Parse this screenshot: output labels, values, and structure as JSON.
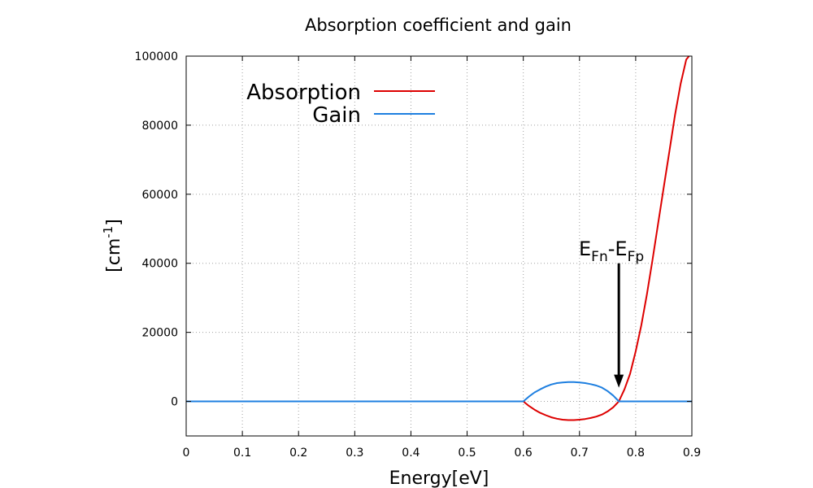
{
  "chart_data": {
    "type": "line",
    "title": "Absorption coefficient and gain",
    "xlabel": "Energy[eV]",
    "ylabel": "[cm",
    "ylabel_sup": "-1",
    "ylabel_close": "]",
    "xlim": [
      0,
      0.9
    ],
    "ylim": [
      -10000,
      100000
    ],
    "xticks": [
      0,
      0.1,
      0.2,
      0.3,
      0.4,
      0.5,
      0.6,
      0.7,
      0.8,
      0.9
    ],
    "xtick_labels": [
      "0",
      "0.1",
      "0.2",
      "0.3",
      "0.4",
      "0.5",
      "0.6",
      "0.7",
      "0.8",
      "0.9"
    ],
    "yticks": [
      0,
      20000,
      40000,
      60000,
      80000,
      100000
    ],
    "ytick_labels": [
      "0",
      "20000",
      "40000",
      "60000",
      "80000",
      "100000"
    ],
    "grid": true,
    "legend_position": "top-left",
    "series": [
      {
        "name": "Absorption",
        "color": "#dd0000",
        "x": [
          0,
          0.6,
          0.61,
          0.62,
          0.63,
          0.64,
          0.65,
          0.66,
          0.67,
          0.68,
          0.69,
          0.7,
          0.71,
          0.72,
          0.73,
          0.74,
          0.75,
          0.76,
          0.77,
          0.78,
          0.79,
          0.8,
          0.81,
          0.82,
          0.83,
          0.84,
          0.85,
          0.86,
          0.87,
          0.88,
          0.89,
          0.895
        ],
        "y": [
          0,
          0,
          -1300,
          -2400,
          -3300,
          -4000,
          -4600,
          -5000,
          -5300,
          -5400,
          -5400,
          -5300,
          -5100,
          -4800,
          -4400,
          -3800,
          -2900,
          -1700,
          0,
          3500,
          8000,
          14500,
          22000,
          31000,
          41000,
          51500,
          62000,
          72500,
          83000,
          92000,
          99000,
          100000
        ]
      },
      {
        "name": "Gain",
        "color": "#1e7fe0",
        "x": [
          0,
          0.6,
          0.61,
          0.62,
          0.63,
          0.64,
          0.65,
          0.66,
          0.67,
          0.68,
          0.69,
          0.7,
          0.71,
          0.72,
          0.73,
          0.74,
          0.75,
          0.76,
          0.77,
          0.78,
          0.9
        ],
        "y": [
          0,
          0,
          1400,
          2600,
          3500,
          4300,
          4900,
          5300,
          5500,
          5600,
          5600,
          5500,
          5300,
          5000,
          4600,
          4000,
          3000,
          1700,
          0,
          0,
          0
        ]
      }
    ],
    "annotation": {
      "label_main1": "E",
      "label_sub1": "Fn",
      "label_dash": "-E",
      "label_sub2": "Fp",
      "arrow_x": 0.77,
      "arrow_from_y": 40000,
      "arrow_to_y": 4000
    }
  }
}
